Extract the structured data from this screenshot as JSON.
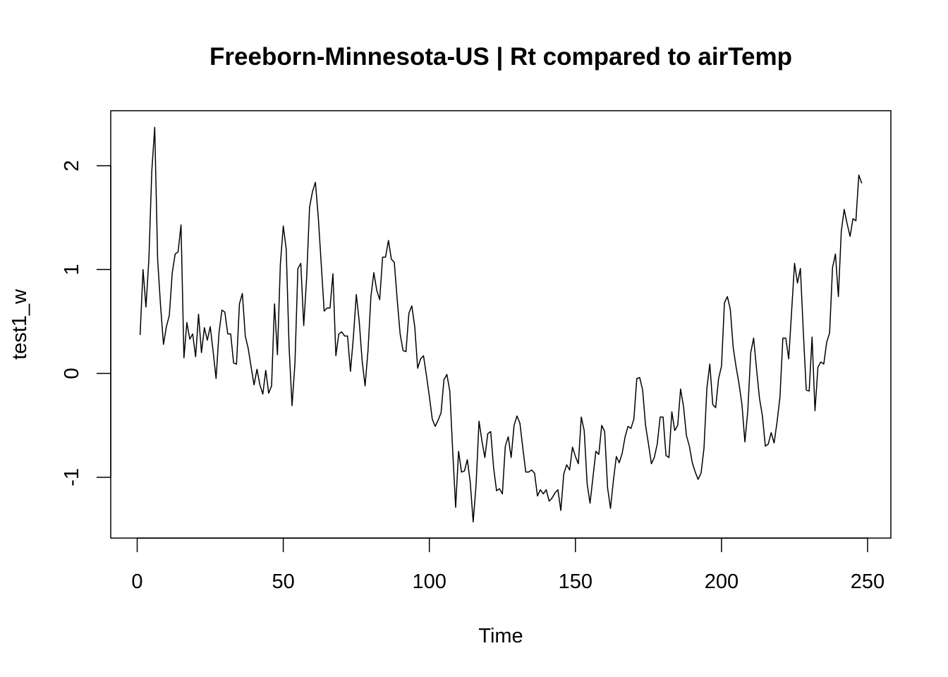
{
  "chart_data": {
    "type": "line",
    "title": "Freeborn-Minnesota-US | Rt compared to airTemp",
    "xlabel": "Time",
    "ylabel": "test1_w",
    "xlim": [
      0,
      250
    ],
    "ylim": [
      -1.5,
      2.4
    ],
    "x_ticks": [
      0,
      50,
      100,
      150,
      200,
      250
    ],
    "x_tick_labels": [
      "0",
      "50",
      "100",
      "150",
      "200",
      "250"
    ],
    "y_ticks": [
      -1,
      0,
      1,
      2
    ],
    "y_tick_labels": [
      "-1",
      "0",
      "1",
      "2"
    ],
    "grid": false,
    "legend": "none",
    "line_color": "#000000",
    "series": [
      {
        "x": [
          1,
          2,
          3,
          4,
          5,
          6,
          7,
          8,
          9,
          10,
          11,
          12,
          13,
          14,
          15,
          16,
          17,
          18,
          19,
          20,
          21,
          22,
          23,
          24,
          25,
          26,
          27,
          28,
          29,
          30,
          31,
          32,
          33,
          34,
          35,
          36,
          37,
          38,
          39,
          40,
          41,
          42,
          43,
          44,
          45,
          46,
          47,
          48,
          49,
          50,
          51,
          52,
          53,
          54,
          55,
          56,
          57,
          58,
          59,
          60,
          61,
          62,
          63,
          64,
          65,
          66,
          67,
          68,
          69,
          70,
          71,
          72,
          73,
          74,
          75,
          76,
          77,
          78,
          79,
          80,
          81,
          82,
          83,
          84,
          85,
          86,
          87,
          88,
          89,
          90,
          91,
          92,
          93,
          94,
          95,
          96,
          97,
          98,
          99,
          100,
          101,
          102,
          103,
          104,
          105,
          106,
          107,
          108,
          109,
          110,
          111,
          112,
          113,
          114,
          115,
          116,
          117,
          118,
          119,
          120,
          121,
          122,
          123,
          124,
          125,
          126,
          127,
          128,
          129,
          130,
          131,
          132,
          133,
          134,
          135,
          136,
          137,
          138,
          139,
          140,
          141,
          142,
          143,
          144,
          145,
          146,
          147,
          148,
          149,
          150,
          151,
          152,
          153,
          154,
          155,
          156,
          157,
          158,
          159,
          160,
          161,
          162,
          163,
          164,
          165,
          166,
          167,
          168,
          169,
          170,
          171,
          172,
          173,
          174,
          175,
          176,
          177,
          178,
          179,
          180,
          181,
          182,
          183,
          184,
          185,
          186,
          187,
          188,
          189,
          190,
          191,
          192,
          193,
          194,
          195,
          196,
          197,
          198,
          199,
          200,
          201,
          202,
          203,
          204,
          205,
          206,
          207,
          208,
          209,
          210,
          211,
          212,
          213,
          214,
          215,
          216,
          217,
          218,
          219,
          220,
          221,
          222,
          223,
          224,
          225,
          226,
          227,
          228,
          229,
          230,
          231,
          232,
          233,
          234,
          235,
          236,
          237,
          238,
          239,
          240,
          241,
          242,
          243,
          244,
          245,
          246,
          247,
          248
        ],
        "values": [
          0.37,
          1.0,
          0.64,
          1.1,
          1.95,
          2.37,
          1.1,
          0.65,
          0.28,
          0.45,
          0.56,
          0.97,
          1.15,
          1.17,
          1.43,
          0.15,
          0.49,
          0.33,
          0.38,
          0.16,
          0.57,
          0.2,
          0.44,
          0.32,
          0.45,
          0.21,
          -0.05,
          0.39,
          0.61,
          0.59,
          0.38,
          0.38,
          0.1,
          0.09,
          0.67,
          0.77,
          0.36,
          0.24,
          0.06,
          -0.11,
          0.04,
          -0.11,
          -0.2,
          0.03,
          -0.19,
          -0.12,
          0.67,
          0.18,
          1.05,
          1.42,
          1.2,
          0.25,
          -0.31,
          0.1,
          1.01,
          1.06,
          0.46,
          0.92,
          1.6,
          1.75,
          1.84,
          1.5,
          1.05,
          0.6,
          0.63,
          0.63,
          0.96,
          0.17,
          0.38,
          0.4,
          0.36,
          0.36,
          0.02,
          0.35,
          0.76,
          0.5,
          0.12,
          -0.12,
          0.22,
          0.74,
          0.97,
          0.8,
          0.71,
          1.12,
          1.12,
          1.28,
          1.1,
          1.07,
          0.71,
          0.38,
          0.22,
          0.21,
          0.58,
          0.65,
          0.45,
          0.05,
          0.14,
          0.17,
          -0.02,
          -0.22,
          -0.44,
          -0.51,
          -0.45,
          -0.38,
          -0.06,
          -0.01,
          -0.17,
          -0.75,
          -1.29,
          -0.75,
          -0.95,
          -0.94,
          -0.83,
          -1.05,
          -1.43,
          -1.07,
          -0.46,
          -0.65,
          -0.81,
          -0.58,
          -0.56,
          -0.91,
          -1.13,
          -1.11,
          -1.16,
          -0.7,
          -0.61,
          -0.81,
          -0.5,
          -0.41,
          -0.48,
          -0.72,
          -0.95,
          -0.95,
          -0.93,
          -0.96,
          -1.18,
          -1.12,
          -1.16,
          -1.12,
          -1.23,
          -1.2,
          -1.15,
          -1.12,
          -1.32,
          -0.97,
          -0.88,
          -0.93,
          -0.71,
          -0.8,
          -0.87,
          -0.42,
          -0.55,
          -1.06,
          -1.25,
          -1.0,
          -0.75,
          -0.78,
          -0.5,
          -0.56,
          -1.1,
          -1.3,
          -1.03,
          -0.8,
          -0.86,
          -0.77,
          -0.61,
          -0.51,
          -0.53,
          -0.44,
          -0.05,
          -0.04,
          -0.16,
          -0.5,
          -0.68,
          -0.87,
          -0.81,
          -0.68,
          -0.42,
          -0.42,
          -0.79,
          -0.81,
          -0.37,
          -0.55,
          -0.5,
          -0.15,
          -0.32,
          -0.6,
          -0.7,
          -0.86,
          -0.95,
          -1.02,
          -0.96,
          -0.72,
          -0.14,
          0.09,
          -0.3,
          -0.33,
          -0.05,
          0.07,
          0.68,
          0.74,
          0.62,
          0.25,
          0.06,
          -0.1,
          -0.3,
          -0.66,
          -0.36,
          0.2,
          0.34,
          0.04,
          -0.24,
          -0.41,
          -0.7,
          -0.68,
          -0.57,
          -0.67,
          -0.47,
          -0.23,
          0.34,
          0.34,
          0.14,
          0.6,
          1.06,
          0.87,
          1.01,
          0.4,
          -0.16,
          -0.17,
          0.35,
          -0.36,
          0.06,
          0.11,
          0.09,
          0.3,
          0.39,
          1.02,
          1.15,
          0.74,
          1.37,
          1.58,
          1.44,
          1.32,
          1.49,
          1.47,
          1.91,
          1.83
        ]
      }
    ]
  }
}
